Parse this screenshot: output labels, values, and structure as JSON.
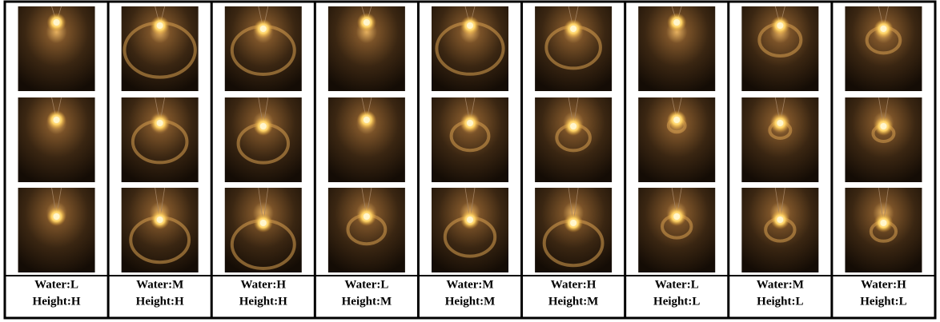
{
  "columns": [
    {
      "water": "Water:L",
      "height": "Height:H"
    },
    {
      "water": "Water:M",
      "height": "Height:H"
    },
    {
      "water": "Water:H",
      "height": "Height:H"
    },
    {
      "water": "Water:L",
      "height": "Height:M"
    },
    {
      "water": "Water:M",
      "height": "Height:M"
    },
    {
      "water": "Water:H",
      "height": "Height:M"
    },
    {
      "water": "Water:L",
      "height": "Height:L"
    },
    {
      "water": "Water:M",
      "height": "Height:L"
    },
    {
      "water": "Water:H",
      "height": "Height:L"
    }
  ]
}
